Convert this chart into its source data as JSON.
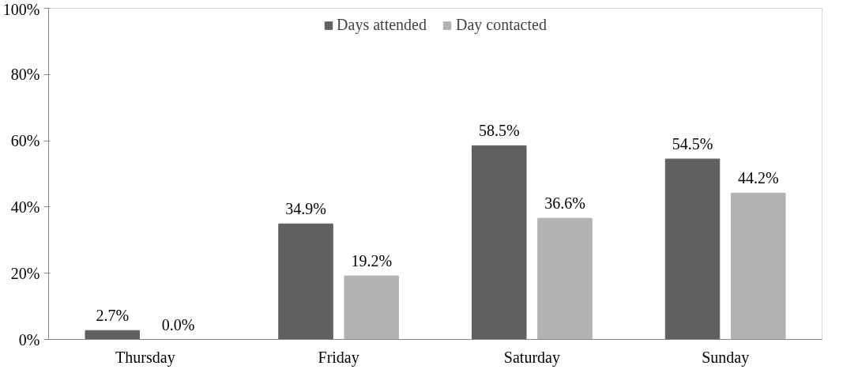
{
  "chart_data": {
    "type": "bar",
    "categories": [
      "Thursday",
      "Friday",
      "Saturday",
      "Sunday"
    ],
    "series": [
      {
        "name": "Days attended",
        "color": "#606060",
        "values": [
          2.7,
          34.9,
          58.5,
          54.5
        ],
        "value_labels": [
          "2.7%",
          "34.9%",
          "58.5%",
          "54.5%"
        ]
      },
      {
        "name": "Day contacted",
        "color": "#b2b2b2",
        "values": [
          0.0,
          19.2,
          36.6,
          44.2
        ],
        "value_labels": [
          "0.0%",
          "19.2%",
          "36.6%",
          "44.2%"
        ]
      }
    ],
    "ylim": [
      0,
      100
    ],
    "yticks": [
      {
        "value": 0,
        "label": "0%"
      },
      {
        "value": 20,
        "label": "20%"
      },
      {
        "value": 40,
        "label": "40%"
      },
      {
        "value": 60,
        "label": "60%"
      },
      {
        "value": 80,
        "label": "80%"
      },
      {
        "value": 100,
        "label": "100%"
      }
    ],
    "grid": false,
    "legend": "top"
  }
}
